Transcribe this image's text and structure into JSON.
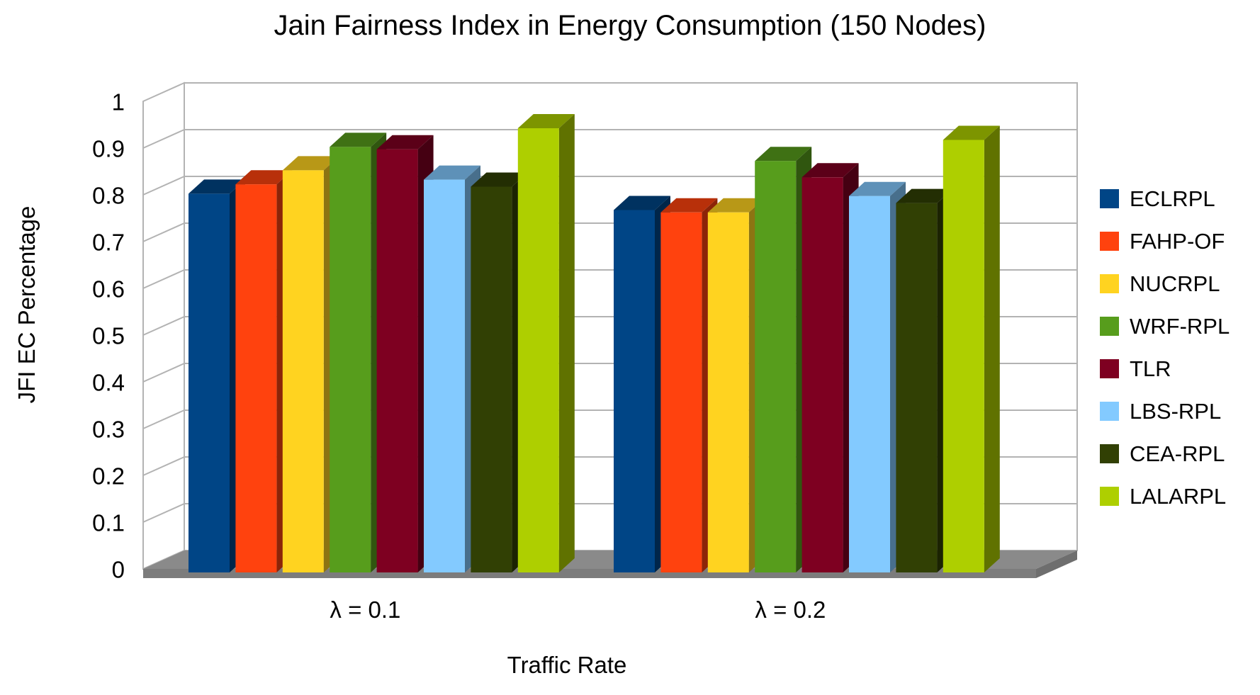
{
  "page": {
    "background": "#ffffff"
  },
  "chart_data": {
    "type": "bar",
    "is_3d": true,
    "title": "Jain Fairness Index in Energy Consumption (150 Nodes)",
    "xlabel": "Traffic Rate",
    "ylabel": "JFI EC Percentage",
    "categories": [
      "λ = 0.1",
      "λ = 0.2"
    ],
    "series": [
      {
        "name": "ECLRPL",
        "color": "#004586",
        "values": [
          0.81,
          0.775
        ]
      },
      {
        "name": "FAHP-OF",
        "color": "#FF420E",
        "values": [
          0.83,
          0.77
        ]
      },
      {
        "name": "NUCRPL",
        "color": "#FFD320",
        "values": [
          0.86,
          0.77
        ]
      },
      {
        "name": "WRF-RPL",
        "color": "#579D1C",
        "values": [
          0.91,
          0.88
        ]
      },
      {
        "name": "TLR",
        "color": "#7E0021",
        "values": [
          0.905,
          0.845
        ]
      },
      {
        "name": "LBS-RPL",
        "color": "#83CAFF",
        "values": [
          0.84,
          0.805
        ]
      },
      {
        "name": "CEA-RPL",
        "color": "#314004",
        "values": [
          0.825,
          0.79
        ]
      },
      {
        "name": "LALARPL",
        "color": "#AECF00",
        "values": [
          0.95,
          0.925
        ]
      }
    ],
    "ylim": [
      0,
      1
    ],
    "ystep": 0.1,
    "yticks": [
      "0",
      "0.1",
      "0.2",
      "0.3",
      "0.4",
      "0.5",
      "0.6",
      "0.7",
      "0.8",
      "0.9",
      "1"
    ],
    "grid": "major-horizontal",
    "legend_position": "right",
    "gridline_color": "#b3b3b3",
    "wall_color": "#ffffff",
    "floor_color": "#8a8a8a",
    "text_color": "#000000"
  }
}
